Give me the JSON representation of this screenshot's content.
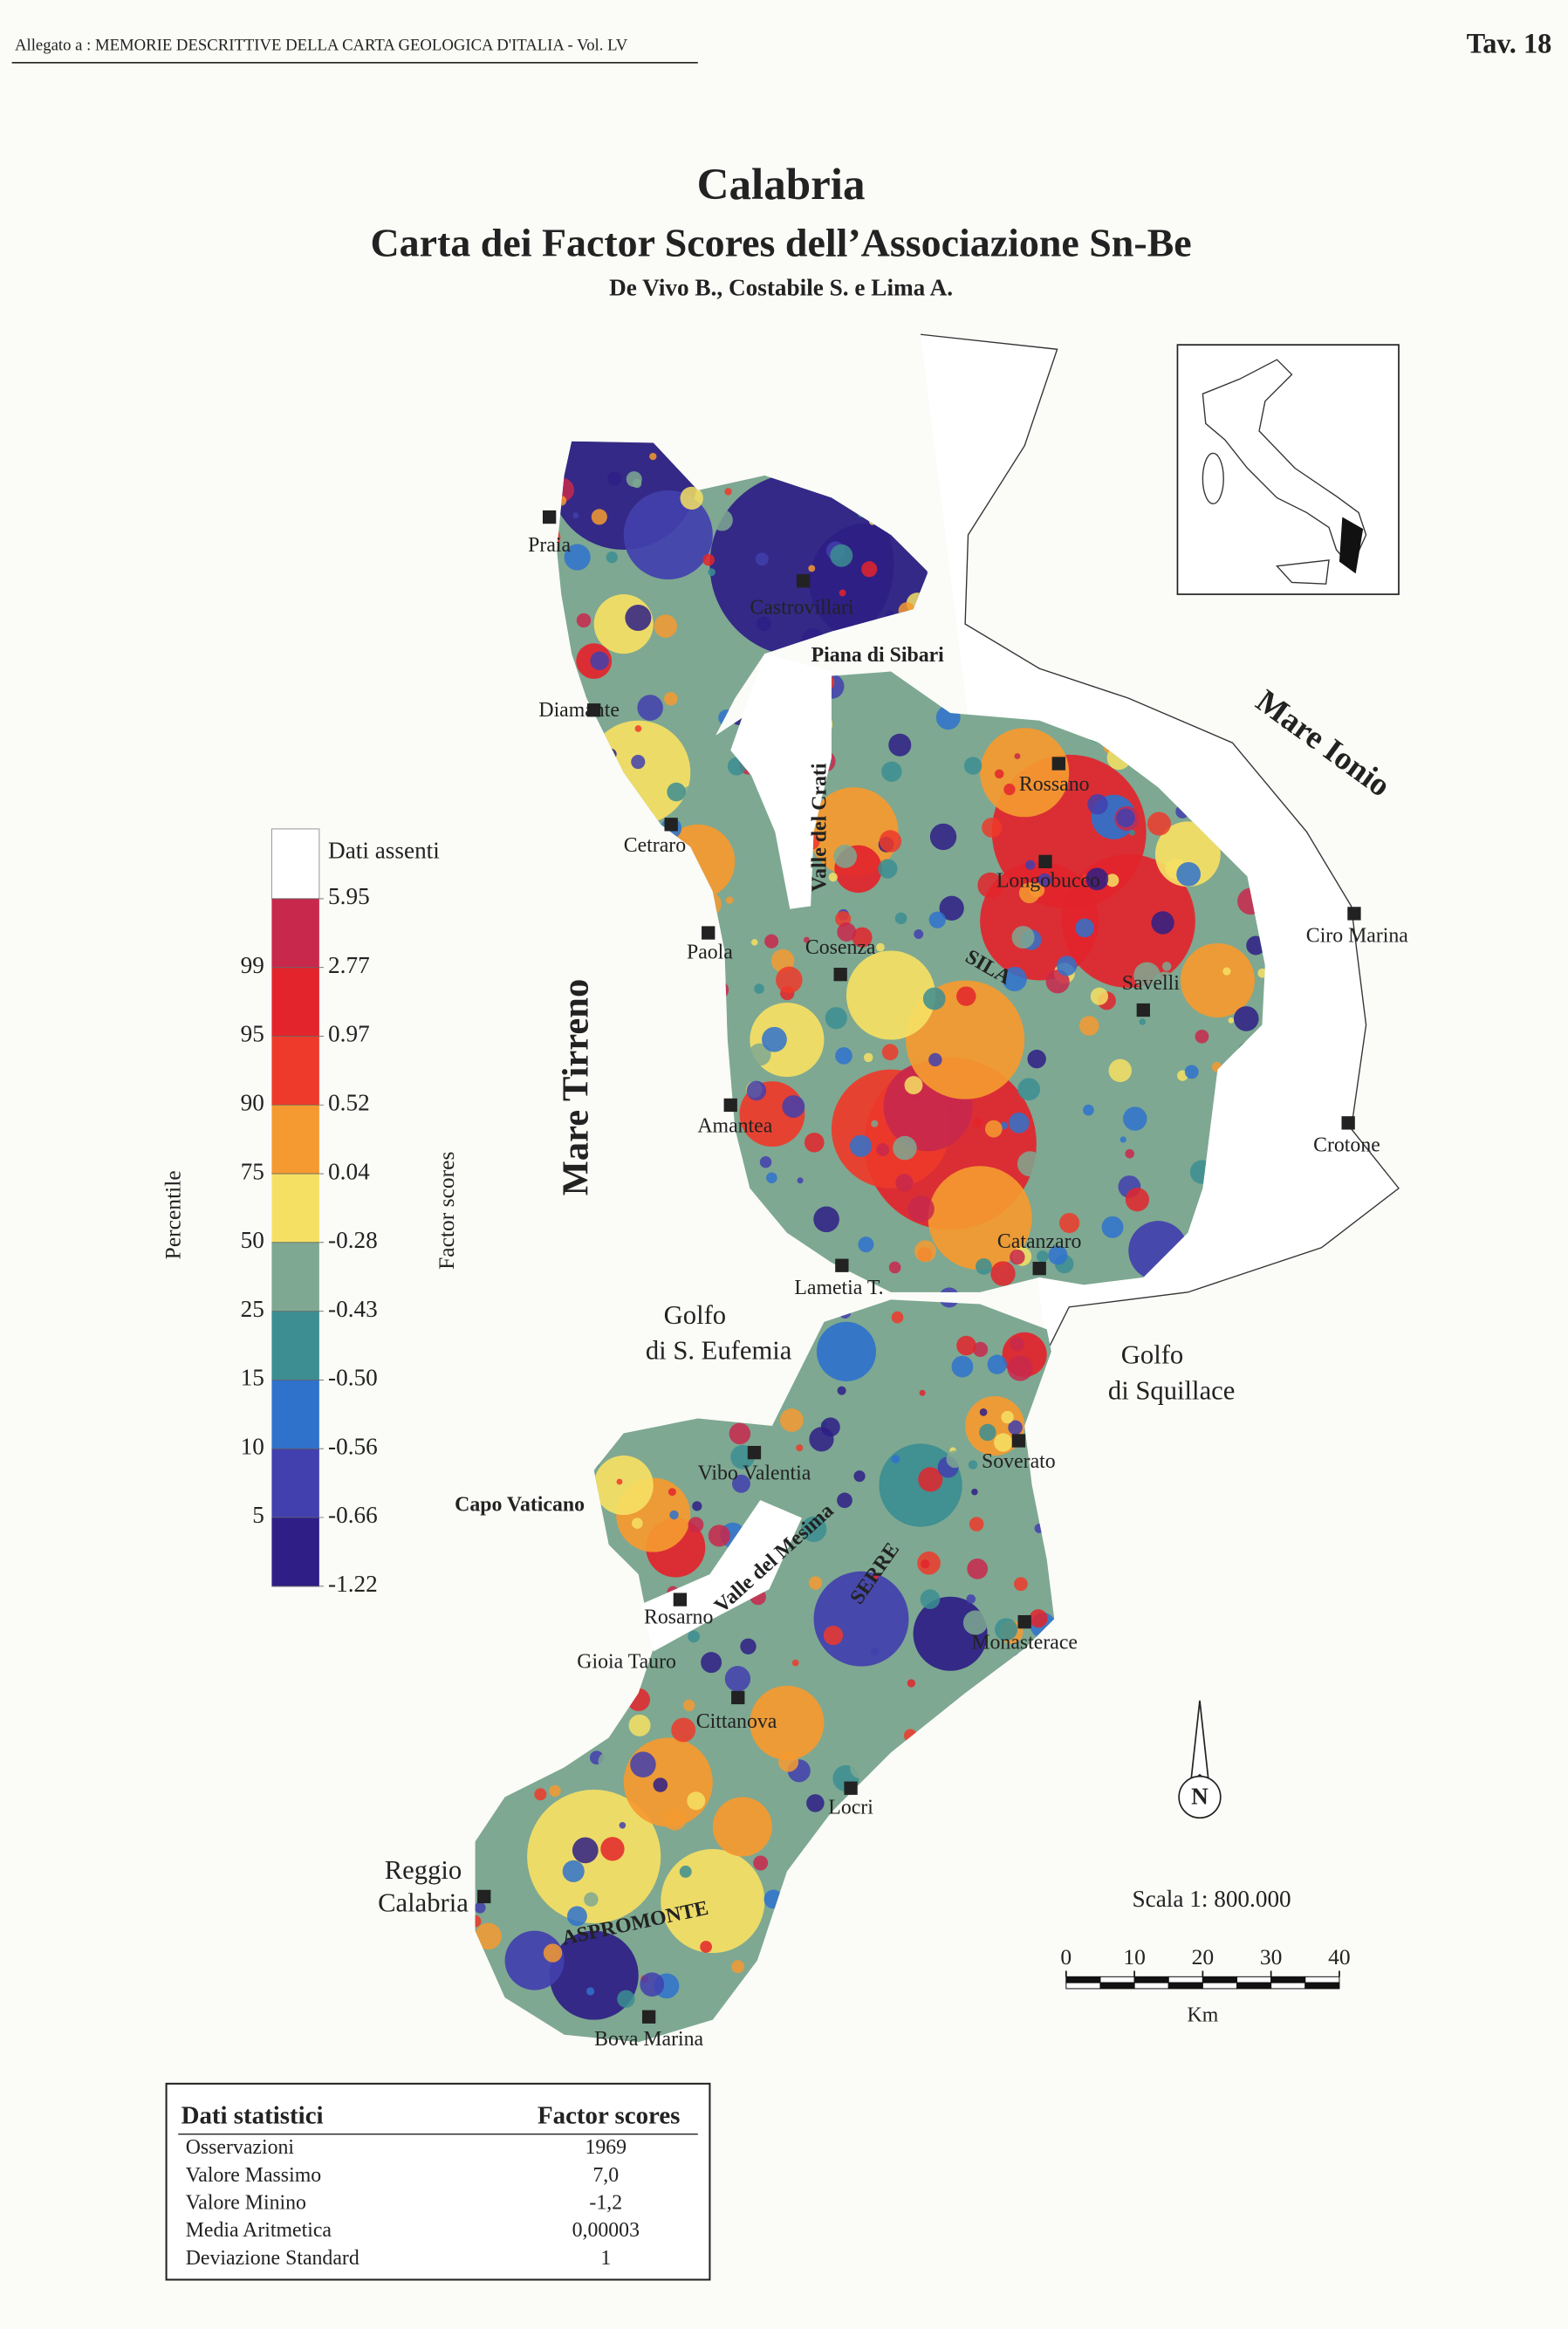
{
  "header": {
    "annex": "Allegato a : MEMORIE DESCRITTIVE DELLA CARTA GEOLOGICA D'ITALIA - Vol. LV",
    "plate": "Tav. 18"
  },
  "title": "Calabria",
  "subtitle": "Carta dei Factor Scores dell’Associazione Sn-Be",
  "authors": "De Vivo B., Costabile S. e Lima A.",
  "legend": {
    "no_data": "Dati assenti",
    "no_data_color": "#ffffff",
    "breaks": [
      "5.95",
      "2.77",
      "0.97",
      "0.52",
      "0.04",
      "-0.28",
      "-0.43",
      "-0.50",
      "-0.56",
      "-0.66",
      "-1.22"
    ],
    "colors": [
      "#c8284c",
      "#e3242c",
      "#ee3a2a",
      "#f59a30",
      "#f6e064",
      "#7ea892",
      "#3c8e92",
      "#2f72cc",
      "#4240ae",
      "#2e1e86"
    ],
    "percentiles": [
      "99",
      "95",
      "90",
      "75",
      "50",
      "25",
      "15",
      "10",
      "5"
    ],
    "percentile_title": "Percentile",
    "scores_title": "Factor scores"
  },
  "seas": {
    "tyrrhenian": "Mare Tirreno",
    "ionian": "Mare Ionio"
  },
  "places": [
    "Praia",
    "Castrovillari",
    "Piana di Sibari",
    "Diamante",
    "Cetraro",
    "Valle del Crati",
    "Rossano",
    "Longobucco",
    "Ciro Marina",
    "Paola",
    "Cosenza",
    "SILA",
    "Savelli",
    "Amantea",
    "Crotone",
    "Catanzaro",
    "Lametia T.",
    "Golfo",
    "di S. Eufemia",
    "Golfo",
    "di Squillace",
    "Soverato",
    "Vibo Valentia",
    "Capo Vaticano",
    "Valle del Mesima",
    "SERRE",
    "Rosarno",
    "Monasterace",
    "Gioia Tauro",
    "Cittanova",
    "Locri",
    "Reggio",
    "Calabria",
    "ASPROMONTE",
    "Bova Marina"
  ],
  "scale": {
    "label": "Scala 1: 800.000",
    "ticks": [
      "0",
      "10",
      "20",
      "30",
      "40"
    ],
    "unit": "Km"
  },
  "north": "N",
  "stats": {
    "header": [
      "Dati statistici",
      "Factor scores"
    ],
    "rows": [
      [
        "Osservazioni",
        "1969"
      ],
      [
        "Valore Massimo",
        "7,0"
      ],
      [
        "Valore Minino",
        "-1,2"
      ],
      [
        "Media Aritmetica",
        "0,00003"
      ],
      [
        "Deviazione Standard",
        "1"
      ]
    ]
  }
}
